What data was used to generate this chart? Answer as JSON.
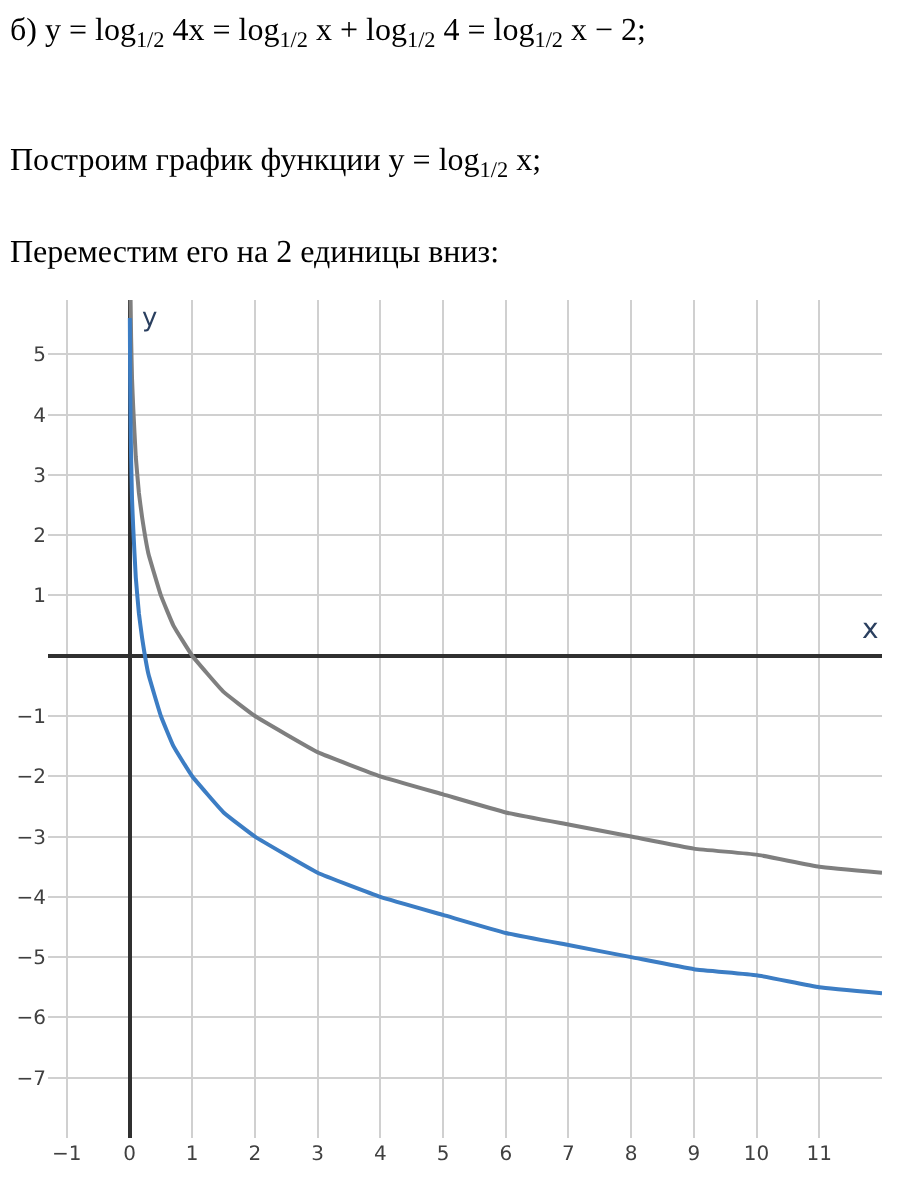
{
  "chart_data": {
    "type": "line",
    "annotations": [
      "б) y = log$_{1/2}$ 4x = log$_{1/2}$ x + log$_{1/2}$ 4 = log$_{1/2}$ x − 2;",
      "Построим график функции y = log$_{1/2}$ x;",
      "Переместим его на 2 единицы вниз:"
    ],
    "xlabel": "x",
    "ylabel": "y",
    "series": [
      {
        "color": "#7f7f7f",
        "x": [
          0.017,
          0.025,
          0.04,
          0.06,
          0.1,
          0.15,
          0.2,
          0.3,
          0.5,
          0.7,
          1,
          1.5,
          2,
          3,
          4,
          5,
          6,
          7,
          8,
          9,
          10,
          11,
          12
        ],
        "values": [
          5.9,
          5.3,
          4.6,
          4.1,
          3.3,
          2.7,
          2.3,
          1.7,
          1.0,
          0.5,
          0.0,
          -0.6,
          -1.0,
          -1.6,
          -2.0,
          -2.3,
          -2.6,
          -2.8,
          -3.0,
          -3.2,
          -3.3,
          -3.5,
          -3.6
        ]
      },
      {
        "color": "#3c7dc4",
        "x": [
          0.005,
          0.01,
          0.017,
          0.025,
          0.04,
          0.06,
          0.1,
          0.15,
          0.2,
          0.3,
          0.5,
          0.7,
          1,
          1.5,
          2,
          3,
          4,
          5,
          6,
          7,
          8,
          9,
          10,
          11,
          12
        ],
        "values": [
          5.6,
          4.6,
          3.9,
          3.3,
          2.6,
          2.1,
          1.3,
          0.7,
          0.3,
          -0.3,
          -1.0,
          -1.5,
          -2.0,
          -2.6,
          -3.0,
          -3.6,
          -4.0,
          -4.3,
          -4.6,
          -4.8,
          -5.0,
          -5.2,
          -5.3,
          -5.5,
          -5.6
        ]
      }
    ],
    "xlim": [
      -1.3,
      12
    ],
    "ylim": [
      -8,
      5.9
    ],
    "xticks": [
      -1,
      0,
      1,
      2,
      3,
      4,
      5,
      6,
      7,
      8,
      9,
      10,
      11
    ],
    "yticks": [
      -7,
      -6,
      -5,
      -4,
      -3,
      -2,
      -1,
      1,
      2,
      3,
      4,
      5
    ],
    "grid": true,
    "marker": "none",
    "line_style": "solid"
  }
}
